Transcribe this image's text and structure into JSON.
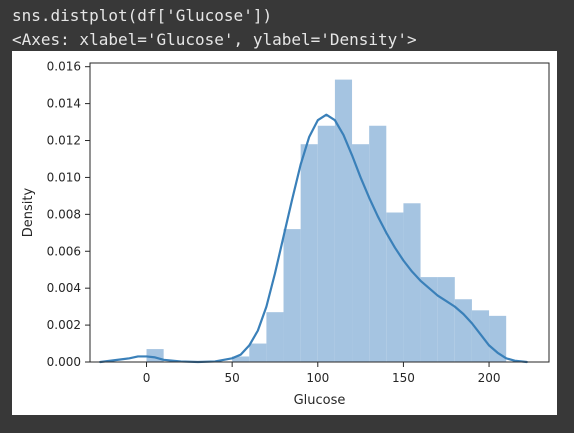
{
  "notebook": {
    "input_code": "sns.distplot(df['Glucose'])",
    "output_repr": "<Axes: xlabel='Glucose', ylabel='Density'>"
  },
  "colors": {
    "background": "#383838",
    "bar_fill": "#a5c4e1",
    "kde_line": "#3a80b9",
    "axis": "#262626"
  },
  "chart_data": {
    "type": "bar",
    "xlabel": "Glucose",
    "ylabel": "Density",
    "xlim": [
      -33,
      235
    ],
    "ylim": [
      0,
      0.0162
    ],
    "xticks": [
      0,
      50,
      100,
      150,
      200
    ],
    "yticks": [
      0.0,
      0.002,
      0.004,
      0.006,
      0.008,
      0.01,
      0.012,
      0.014,
      0.016
    ],
    "ytick_labels": [
      "0.000",
      "0.002",
      "0.004",
      "0.006",
      "0.008",
      "0.010",
      "0.012",
      "0.014",
      "0.016"
    ],
    "histogram": {
      "bins": [
        {
          "x0": 0,
          "x1": 10,
          "density": 0.0007
        },
        {
          "x0": 50,
          "x1": 60,
          "density": 0.0003
        },
        {
          "x0": 60,
          "x1": 70,
          "density": 0.001
        },
        {
          "x0": 70,
          "x1": 80,
          "density": 0.0027
        },
        {
          "x0": 80,
          "x1": 90,
          "density": 0.0072
        },
        {
          "x0": 90,
          "x1": 100,
          "density": 0.0118
        },
        {
          "x0": 100,
          "x1": 110,
          "density": 0.0128
        },
        {
          "x0": 110,
          "x1": 120,
          "density": 0.0153
        },
        {
          "x0": 120,
          "x1": 130,
          "density": 0.0118
        },
        {
          "x0": 130,
          "x1": 140,
          "density": 0.0128
        },
        {
          "x0": 140,
          "x1": 150,
          "density": 0.0081
        },
        {
          "x0": 150,
          "x1": 160,
          "density": 0.0086
        },
        {
          "x0": 160,
          "x1": 170,
          "density": 0.0046
        },
        {
          "x0": 170,
          "x1": 180,
          "density": 0.0046
        },
        {
          "x0": 180,
          "x1": 190,
          "density": 0.0034
        },
        {
          "x0": 190,
          "x1": 200,
          "density": 0.0028
        },
        {
          "x0": 200,
          "x1": 210,
          "density": 0.0025
        }
      ]
    },
    "kde": {
      "name": "",
      "x": [
        -27,
        -20,
        -10,
        -5,
        0,
        5,
        10,
        20,
        30,
        40,
        50,
        55,
        60,
        65,
        70,
        75,
        80,
        85,
        90,
        95,
        100,
        105,
        110,
        115,
        120,
        125,
        130,
        135,
        140,
        145,
        150,
        155,
        160,
        165,
        170,
        175,
        180,
        185,
        190,
        195,
        200,
        205,
        210,
        215,
        222
      ],
      "y": [
        0.0,
        8e-05,
        0.0002,
        0.0003,
        0.0003,
        0.00025,
        0.00012,
        3e-05,
        0.0,
        3e-05,
        0.0002,
        0.0004,
        0.0009,
        0.0017,
        0.003,
        0.0048,
        0.0068,
        0.0088,
        0.0107,
        0.0122,
        0.0131,
        0.0134,
        0.0131,
        0.0123,
        0.0112,
        0.01,
        0.0089,
        0.0079,
        0.007,
        0.0062,
        0.0055,
        0.0049,
        0.0044,
        0.004,
        0.0036,
        0.0033,
        0.003,
        0.0026,
        0.0021,
        0.0015,
        0.0009,
        0.0005,
        0.0002,
        7e-05,
        0.0
      ]
    }
  }
}
